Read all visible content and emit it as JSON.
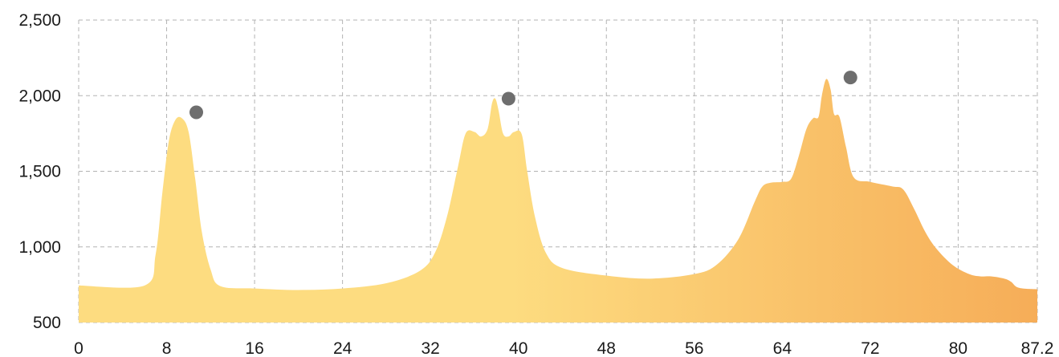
{
  "chart_data": {
    "type": "area",
    "title": "",
    "xlabel": "",
    "ylabel": "",
    "xlim": [
      0,
      87.2
    ],
    "ylim": [
      500,
      2500
    ],
    "x_ticks": [
      0,
      8,
      16,
      24,
      32,
      40,
      48,
      56,
      64,
      72,
      80,
      87.2
    ],
    "x_tick_labels": [
      "0",
      "8",
      "16",
      "24",
      "32",
      "40",
      "48",
      "56",
      "64",
      "72",
      "80",
      "87.2"
    ],
    "y_ticks": [
      500,
      1000,
      1500,
      2000,
      2500
    ],
    "y_tick_labels": [
      "500",
      "1,000",
      "1,500",
      "2,000",
      "2,500"
    ],
    "grid": true,
    "legend": "none",
    "colors": {
      "fill_start": "#fddc80",
      "fill_end": "#f6ad58",
      "marker": "#6e6e6e",
      "grid": "#b3b3b3"
    },
    "series": [
      {
        "points": [
          [
            0,
            745
          ],
          [
            6,
            745
          ],
          [
            7,
            950
          ],
          [
            7.6,
            1350
          ],
          [
            8.2,
            1700
          ],
          [
            8.8,
            1840
          ],
          [
            9.4,
            1850
          ],
          [
            10,
            1760
          ],
          [
            10.6,
            1450
          ],
          [
            11.2,
            1100
          ],
          [
            12,
            850
          ],
          [
            12.9,
            740
          ],
          [
            16,
            725
          ],
          [
            20,
            715
          ],
          [
            24,
            725
          ],
          [
            28,
            760
          ],
          [
            31,
            840
          ],
          [
            32.4,
            960
          ],
          [
            33.5,
            1200
          ],
          [
            34.5,
            1530
          ],
          [
            35.2,
            1750
          ],
          [
            36,
            1760
          ],
          [
            36.6,
            1730
          ],
          [
            37.2,
            1780
          ],
          [
            37.6,
            1950
          ],
          [
            37.9,
            1980
          ],
          [
            38.2,
            1900
          ],
          [
            38.6,
            1750
          ],
          [
            39.1,
            1730
          ],
          [
            39.6,
            1760
          ],
          [
            40.3,
            1745
          ],
          [
            40.8,
            1500
          ],
          [
            41.5,
            1200
          ],
          [
            42.5,
            960
          ],
          [
            44,
            860
          ],
          [
            48,
            810
          ],
          [
            52,
            790
          ],
          [
            56,
            820
          ],
          [
            58,
            880
          ],
          [
            60,
            1050
          ],
          [
            61.5,
            1300
          ],
          [
            62.2,
            1400
          ],
          [
            63,
            1425
          ],
          [
            64,
            1430
          ],
          [
            64.8,
            1450
          ],
          [
            65.5,
            1600
          ],
          [
            66.2,
            1780
          ],
          [
            66.8,
            1850
          ],
          [
            67.3,
            1860
          ],
          [
            67.6,
            2000
          ],
          [
            68,
            2110
          ],
          [
            68.4,
            2040
          ],
          [
            68.7,
            1880
          ],
          [
            69.2,
            1860
          ],
          [
            69.8,
            1660
          ],
          [
            70.5,
            1460
          ],
          [
            72,
            1430
          ],
          [
            74,
            1400
          ],
          [
            75,
            1380
          ],
          [
            76,
            1250
          ],
          [
            77,
            1100
          ],
          [
            78,
            990
          ],
          [
            79.5,
            880
          ],
          [
            81,
            820
          ],
          [
            82,
            805
          ],
          [
            83,
            805
          ],
          [
            84.2,
            790
          ],
          [
            84.8,
            770
          ],
          [
            85.5,
            730
          ],
          [
            87.2,
            720
          ]
        ]
      }
    ],
    "markers": [
      {
        "x": 10.7,
        "y": 1890
      },
      {
        "x": 39.1,
        "y": 1980
      },
      {
        "x": 70.2,
        "y": 2120
      }
    ]
  }
}
